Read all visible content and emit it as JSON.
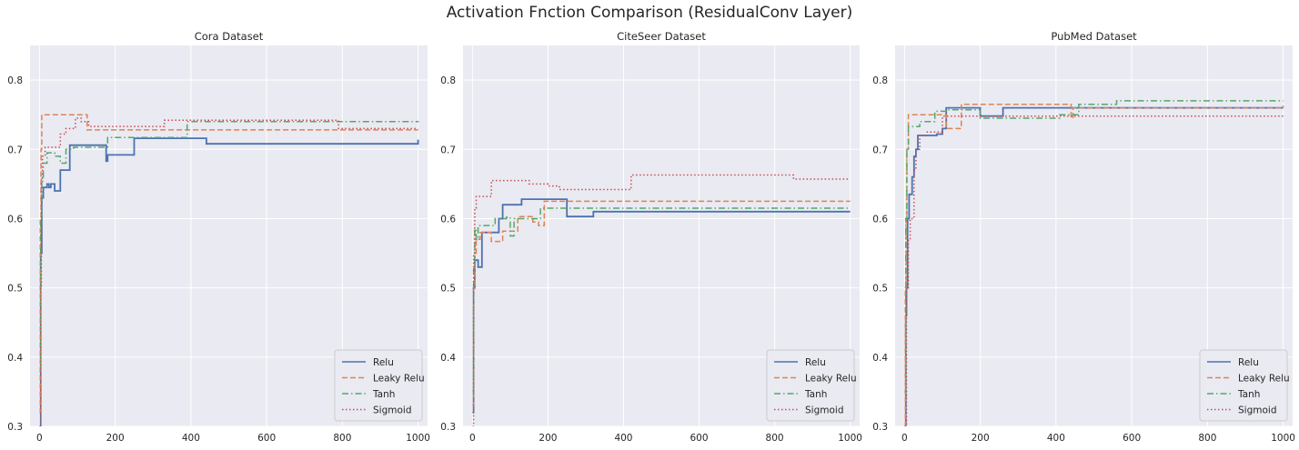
{
  "figure": {
    "title": "Activation Fnction Comparison  (ResidualConv Layer)"
  },
  "colors": {
    "Relu": "#4c72b0",
    "Leaky Relu": "#dd8452",
    "Tanh": "#55a868",
    "Sigmoid": "#c44e52",
    "background": "#eaeaf2",
    "grid": "#ffffff"
  },
  "chart_data": [
    {
      "type": "line",
      "title": "Cora Dataset",
      "xlim": [
        -25,
        1025
      ],
      "ylim": [
        0.3,
        0.85
      ],
      "xticks": [
        0,
        200,
        400,
        600,
        800,
        1000
      ],
      "yticks": [
        0.3,
        0.4,
        0.5,
        0.6,
        0.7,
        0.8
      ],
      "grid": true,
      "legend_position": "lower-right",
      "series": [
        {
          "name": "Relu",
          "style": "solid",
          "x": [
            0,
            3,
            6,
            10,
            20,
            25,
            30,
            40,
            55,
            80,
            120,
            175,
            176,
            180,
            250,
            300,
            440,
            441,
            1000
          ],
          "y": [
            0.3,
            0.55,
            0.63,
            0.645,
            0.65,
            0.645,
            0.65,
            0.64,
            0.67,
            0.706,
            0.706,
            0.706,
            0.683,
            0.692,
            0.716,
            0.716,
            0.716,
            0.708,
            0.714
          ]
        },
        {
          "name": "Leaky Relu",
          "style": "dashed",
          "x": [
            0,
            2,
            4,
            6,
            10,
            125,
            126,
            1000
          ],
          "y": [
            0.32,
            0.6,
            0.7,
            0.75,
            0.75,
            0.75,
            0.728,
            0.728
          ]
        },
        {
          "name": "Tanh",
          "style": "dashdot",
          "x": [
            0,
            3,
            6,
            10,
            20,
            40,
            55,
            70,
            90,
            180,
            390,
            1000
          ],
          "y": [
            0.38,
            0.6,
            0.66,
            0.68,
            0.695,
            0.69,
            0.68,
            0.7,
            0.703,
            0.717,
            0.74,
            0.741
          ]
        },
        {
          "name": "Sigmoid",
          "style": "dotted",
          "x": [
            0,
            3,
            5,
            8,
            15,
            55,
            70,
            95,
            110,
            130,
            330,
            790,
            1000
          ],
          "y": [
            0.3,
            0.5,
            0.65,
            0.69,
            0.703,
            0.722,
            0.73,
            0.745,
            0.74,
            0.733,
            0.742,
            0.73,
            0.73
          ]
        }
      ]
    },
    {
      "type": "line",
      "title": "CiteSeer Dataset",
      "xlim": [
        -25,
        1025
      ],
      "ylim": [
        0.3,
        0.85
      ],
      "xticks": [
        0,
        200,
        400,
        600,
        800,
        1000
      ],
      "yticks": [
        0.3,
        0.4,
        0.5,
        0.6,
        0.7,
        0.8
      ],
      "grid": true,
      "legend_position": "lower-right",
      "series": [
        {
          "name": "Relu",
          "style": "solid",
          "x": [
            0,
            3,
            6,
            15,
            25,
            70,
            80,
            130,
            250,
            320,
            1000
          ],
          "y": [
            0.32,
            0.5,
            0.54,
            0.53,
            0.58,
            0.6,
            0.62,
            0.628,
            0.603,
            0.61,
            0.61
          ]
        },
        {
          "name": "Leaky Relu",
          "style": "dashed",
          "x": [
            0,
            3,
            6,
            10,
            20,
            50,
            80,
            120,
            160,
            175,
            190,
            1000
          ],
          "y": [
            0.33,
            0.5,
            0.55,
            0.57,
            0.58,
            0.567,
            0.582,
            0.603,
            0.595,
            0.59,
            0.625,
            0.625
          ]
        },
        {
          "name": "Tanh",
          "style": "dashdot",
          "x": [
            0,
            3,
            6,
            10,
            15,
            60,
            90,
            100,
            110,
            180,
            1000
          ],
          "y": [
            0.35,
            0.53,
            0.585,
            0.57,
            0.59,
            0.6,
            0.602,
            0.575,
            0.6,
            0.615,
            0.615
          ]
        },
        {
          "name": "Sigmoid",
          "style": "dotted",
          "x": [
            0,
            3,
            6,
            10,
            50,
            150,
            200,
            230,
            420,
            850,
            1000
          ],
          "y": [
            0.3,
            0.55,
            0.615,
            0.632,
            0.655,
            0.65,
            0.647,
            0.642,
            0.663,
            0.657,
            0.657
          ]
        }
      ]
    },
    {
      "type": "line",
      "title": "PubMed Dataset",
      "xlim": [
        -25,
        1025
      ],
      "ylim": [
        0.3,
        0.85
      ],
      "xticks": [
        0,
        200,
        400,
        600,
        800,
        1000
      ],
      "yticks": [
        0.3,
        0.4,
        0.5,
        0.6,
        0.7,
        0.8
      ],
      "grid": true,
      "legend_position": "lower-right",
      "series": [
        {
          "name": "Relu",
          "style": "solid",
          "x": [
            0,
            3,
            5,
            8,
            12,
            20,
            25,
            30,
            35,
            40,
            70,
            85,
            100,
            110,
            200,
            260,
            1000
          ],
          "y": [
            0.3,
            0.46,
            0.5,
            0.6,
            0.635,
            0.66,
            0.69,
            0.7,
            0.72,
            0.72,
            0.72,
            0.722,
            0.73,
            0.76,
            0.748,
            0.76,
            0.76
          ]
        },
        {
          "name": "Leaky Relu",
          "style": "dashed",
          "x": [
            0,
            2,
            4,
            6,
            10,
            60,
            110,
            150,
            440,
            445,
            1000
          ],
          "y": [
            0.3,
            0.5,
            0.6,
            0.7,
            0.75,
            0.75,
            0.73,
            0.765,
            0.745,
            0.76,
            0.763
          ]
        },
        {
          "name": "Tanh",
          "style": "dashdot",
          "x": [
            0,
            3,
            6,
            10,
            40,
            80,
            110,
            200,
            410,
            460,
            560,
            1000
          ],
          "y": [
            0.35,
            0.6,
            0.7,
            0.733,
            0.74,
            0.755,
            0.757,
            0.745,
            0.75,
            0.765,
            0.77,
            0.77
          ]
        },
        {
          "name": "Sigmoid",
          "style": "dotted",
          "x": [
            0,
            5,
            10,
            15,
            25,
            30,
            40,
            60,
            100,
            200,
            1000
          ],
          "y": [
            0.3,
            0.5,
            0.57,
            0.6,
            0.67,
            0.7,
            0.72,
            0.725,
            0.748,
            0.748,
            0.748
          ]
        }
      ]
    }
  ]
}
